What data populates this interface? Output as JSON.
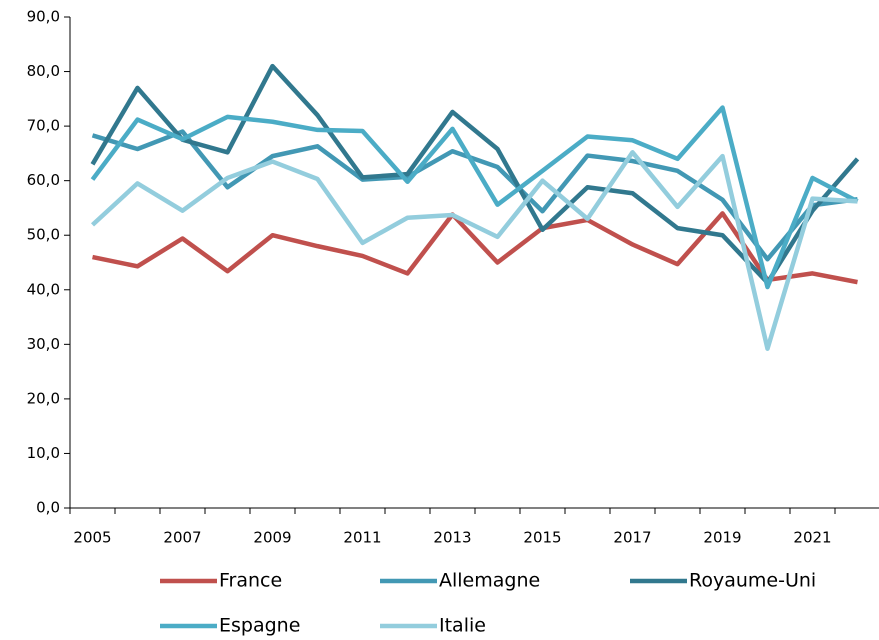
{
  "chart_data": {
    "type": "line",
    "categories": [
      "2005",
      null,
      "2007",
      null,
      "2009",
      null,
      "2011",
      null,
      "2013",
      null,
      "2015",
      null,
      "2017",
      null,
      "2019",
      null,
      "2021",
      null
    ],
    "ylim": [
      0,
      90
    ],
    "yticks": [
      {
        "value": 0,
        "label": "0,0"
      },
      {
        "value": 10,
        "label": "10,0"
      },
      {
        "value": 20,
        "label": "20,0"
      },
      {
        "value": 30,
        "label": "30,0"
      },
      {
        "value": 40,
        "label": "40,0"
      },
      {
        "value": 50,
        "label": "50,0"
      },
      {
        "value": 60,
        "label": "60,0"
      },
      {
        "value": 70,
        "label": "70,0"
      },
      {
        "value": 80,
        "label": "80,0"
      },
      {
        "value": 90,
        "label": "90,0"
      }
    ],
    "grid": false,
    "legend": "bottom",
    "series": [
      {
        "name": "France",
        "color": "#c0504d",
        "values": [
          46,
          44.3,
          49.4,
          43.4,
          50,
          48,
          46.2,
          43,
          53.8,
          45,
          51.3,
          52.8,
          48.3,
          44.7,
          54,
          41.8,
          43,
          41.4
        ]
      },
      {
        "name": "Allemagne",
        "color": "#4298b4",
        "values": [
          68.3,
          65.8,
          69,
          58.8,
          64.5,
          66.3,
          60.2,
          60.7,
          65.4,
          62.5,
          54.4,
          64.6,
          63.6,
          61.8,
          56.5,
          45.6,
          55.5,
          56.6
        ]
      },
      {
        "name": "Royaume-Uni",
        "color": "#31788e",
        "values": [
          63,
          77,
          67.5,
          65.2,
          81,
          72,
          60.6,
          61.2,
          72.6,
          65.8,
          51,
          58.8,
          57.7,
          51.3,
          50,
          41.3,
          54.5,
          64
        ]
      },
      {
        "name": "Espagne",
        "color": "#4bacc6",
        "values": [
          60.2,
          71.2,
          67.6,
          71.7,
          70.8,
          69.3,
          69.1,
          59.8,
          69.5,
          55.6,
          61.8,
          68.1,
          67.4,
          64,
          73.4,
          40.5,
          60.5,
          56.2
        ]
      },
      {
        "name": "Italie",
        "color": "#93cddd",
        "values": [
          51.9,
          59.5,
          54.5,
          60.5,
          63.5,
          60.3,
          48.6,
          53.2,
          53.7,
          49.7,
          60,
          53,
          65.2,
          55.2,
          64.5,
          29.2,
          56.7,
          56.2
        ]
      }
    ]
  }
}
